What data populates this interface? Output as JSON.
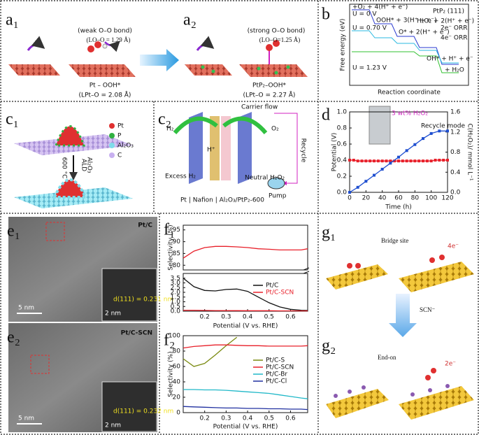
{
  "panels": {
    "a1": {
      "label": "a₁",
      "weak_bond": "(weak O–O bond)",
      "oo_length": "(LO–O = 1.29 Å)",
      "species": "Pt – OOH*",
      "pto_length": "(LPt–O = 2.08 Å)"
    },
    "a2": {
      "label": "a₂",
      "strong_bond": "(strong O–O bond)",
      "oo_length": "(LO–O=1.25 Å)",
      "species": "PtP₂–OOH*",
      "pto_length": "(LPt–O = 2.27 Å)"
    },
    "b": {
      "label": "b",
      "ylabel": "Free energy (eV)",
      "xlabel": "Reaction coordinate",
      "surface": "PtP₂ (111)",
      "u0": "U = 0 V",
      "u070": "U = 0.70 V",
      "u123": "U = 1.23 V",
      "step1": "+O₂ + 4(H⁺ + e⁻)",
      "step2": "OOH* + 3(H⁺ + e⁻)",
      "step3": "H₂O₂ + 2(H⁺ + e⁻)",
      "step4": "O* + 2(H⁺ + e⁻)",
      "step5": "OH* + H⁺ + e⁻",
      "step6": "+ H₂O",
      "orr2": "2e⁻ ORR",
      "orr4": "4e⁻ ORR"
    },
    "c1": {
      "label": "c₁",
      "legend": [
        "Pt",
        "P",
        "Al₂O₃",
        "C"
      ],
      "process": "ALD",
      "coating": "Al₂O₃",
      "temperature": "600 °C"
    },
    "c2": {
      "label": "c₂",
      "carrier": "Carrier flow",
      "h2": "H₂",
      "o2": "O₂",
      "proton": "H⁺",
      "recycle": "Recycle",
      "excess": "Excess H₂",
      "neutral": "Neutral H₂O₂",
      "pump": "Pump",
      "stack": "Pt | Nafion | Al₂O₃/PtP₂-600"
    },
    "d": {
      "label": "d"
    },
    "e1": {
      "label": "e₁",
      "sample": "Pt/C",
      "scale": "5 nm",
      "inset_scale": "2 nm",
      "spacing": "d(111) = 0.231 nm"
    },
    "e2": {
      "label": "e₂",
      "sample": "Pt/C-SCN",
      "scale": "5 nm",
      "inset_scale": "2 nm",
      "spacing": "d(111) = 0.232 nm"
    },
    "f1": {
      "label": "f₁"
    },
    "f2": {
      "label": "f₂"
    },
    "g1": {
      "label": "g₁",
      "site": "Bridge site",
      "electrons": "4e⁻"
    },
    "g": {
      "additive": "SCN⁻"
    },
    "g2": {
      "label": "g₂",
      "site": "End-on",
      "electrons": "2e⁻"
    }
  },
  "chart_data": [
    {
      "type": "line",
      "xlabel": "Time (h)",
      "ylabel": "Potential (V)",
      "y2label": "C(H₂O₂)/ mmol L⁻¹",
      "xlim": [
        0,
        120
      ],
      "xticks": [
        0,
        20,
        40,
        60,
        80,
        100,
        120
      ],
      "ylim": [
        0,
        1.0
      ],
      "yticks": [
        {
          "value": 0,
          "label": "0.0"
        },
        0.2,
        0.4,
        0.6,
        0.8,
        {
          "value": 1.0,
          "label": "1.0"
        }
      ],
      "y2lim": [
        0,
        1.6
      ],
      "y2ticks": [
        {
          "value": 0,
          "label": "0.0"
        },
        0.4,
        0.8,
        1.2,
        1.6
      ],
      "annotations": [
        "3 wt% H₂O₂",
        "Recycle mode"
      ],
      "series": [
        {
          "color": "#e8202a",
          "marker": "square",
          "x": [
            0,
            5,
            10,
            15,
            20,
            25,
            30,
            35,
            40,
            45,
            50,
            55,
            60,
            65,
            70,
            75,
            80,
            85,
            90,
            95,
            100,
            105,
            110,
            115,
            120
          ],
          "values": [
            0.4,
            0.4,
            0.39,
            0.39,
            0.39,
            0.39,
            0.39,
            0.39,
            0.39,
            0.39,
            0.39,
            0.39,
            0.39,
            0.39,
            0.39,
            0.39,
            0.39,
            0.39,
            0.39,
            0.39,
            0.39,
            0.4,
            0.4,
            0.4,
            0.4
          ]
        },
        {
          "color": "#1f4fd0",
          "marker": "square",
          "axis": "y2",
          "x": [
            0,
            10,
            20,
            30,
            40,
            50,
            60,
            70,
            80,
            90,
            100,
            110,
            120
          ],
          "values": [
            0,
            0.1,
            0.22,
            0.34,
            0.46,
            0.58,
            0.7,
            0.83,
            0.95,
            1.07,
            1.17,
            1.22,
            1.22
          ]
        }
      ]
    },
    {
      "type": "line",
      "ylabel": "Selectivity (%)",
      "xlim": [
        0.1,
        0.68
      ],
      "ylim": [
        78,
        97
      ],
      "yticks": [
        80,
        85,
        90,
        95
      ],
      "x": [
        0.1,
        0.15,
        0.2,
        0.25,
        0.3,
        0.35,
        0.4,
        0.45,
        0.5,
        0.55,
        0.6,
        0.65,
        0.68
      ],
      "series": [
        {
          "color": "#e8202a",
          "values": [
            83,
            86,
            87.5,
            88,
            88,
            87.8,
            87.5,
            87,
            86.8,
            86.5,
            86.5,
            86.5,
            87
          ]
        }
      ]
    },
    {
      "type": "line",
      "xlabel": "Potential (V vs. RHE)",
      "xlim": [
        0.1,
        0.68
      ],
      "xticks": [
        0.2,
        0.3,
        0.4,
        0.5,
        0.6
      ],
      "ylim": [
        0,
        4
      ],
      "yticks": [
        {
          "value": 0,
          "label": "0.0"
        },
        0.5,
        {
          "value": 1,
          "label": "1.0"
        },
        1.5,
        {
          "value": 2,
          "label": "2.0"
        },
        2.5,
        {
          "value": 3,
          "label": "3.0"
        },
        3.5
      ],
      "legend": "center-right",
      "x": [
        0.1,
        0.15,
        0.2,
        0.25,
        0.3,
        0.35,
        0.4,
        0.45,
        0.5,
        0.55,
        0.6,
        0.65,
        0.68
      ],
      "series": [
        {
          "name": "Pt/C",
          "color": "#111111",
          "values": [
            3.5,
            2.6,
            2.2,
            2.15,
            2.3,
            2.35,
            2.1,
            1.5,
            0.9,
            0.45,
            0.2,
            0.1,
            0.08
          ]
        },
        {
          "name": "Pt/C-SCN",
          "color": "#e8202a",
          "values": [
            0.1,
            0.1,
            0.08,
            0.07,
            0.06,
            0.06,
            0.05,
            0.05,
            0.05,
            0.04,
            0.04,
            0.04,
            0.04
          ]
        }
      ]
    },
    {
      "type": "line",
      "xlabel": "Potential (V vs. RHE)",
      "ylabel": "Selectivity (%)",
      "xlim": [
        0.1,
        0.68
      ],
      "xticks": [
        0.2,
        0.3,
        0.4,
        0.5,
        0.6
      ],
      "ylim": [
        0,
        100
      ],
      "yticks": [
        0,
        20,
        40,
        60,
        80,
        100
      ],
      "legend": "center-right",
      "x": [
        0.1,
        0.15,
        0.2,
        0.25,
        0.3,
        0.35,
        0.4,
        0.45,
        0.5,
        0.55,
        0.6,
        0.65,
        0.68
      ],
      "series": [
        {
          "name": "Pt/C-S",
          "color": "#7a8a10",
          "values": [
            70,
            60,
            64,
            75,
            87,
            98,
            null,
            null,
            null,
            null,
            null,
            null,
            null
          ]
        },
        {
          "name": "Pt/C-SCN",
          "color": "#e8202a",
          "values": [
            84,
            86,
            87,
            88,
            88,
            87.5,
            87,
            87,
            86.5,
            86.5,
            86.5,
            86.5,
            87
          ]
        },
        {
          "name": "Pt/C-Br",
          "color": "#20b8c8",
          "values": [
            30,
            30,
            29.5,
            29.5,
            29,
            28,
            27,
            26,
            25,
            23,
            21,
            19,
            18
          ]
        },
        {
          "name": "Pt/C-Cl",
          "color": "#2030a0",
          "values": [
            8,
            7.5,
            7,
            6.5,
            6,
            6,
            5.5,
            5.5,
            5,
            5,
            4.5,
            4.5,
            4
          ]
        }
      ]
    }
  ]
}
